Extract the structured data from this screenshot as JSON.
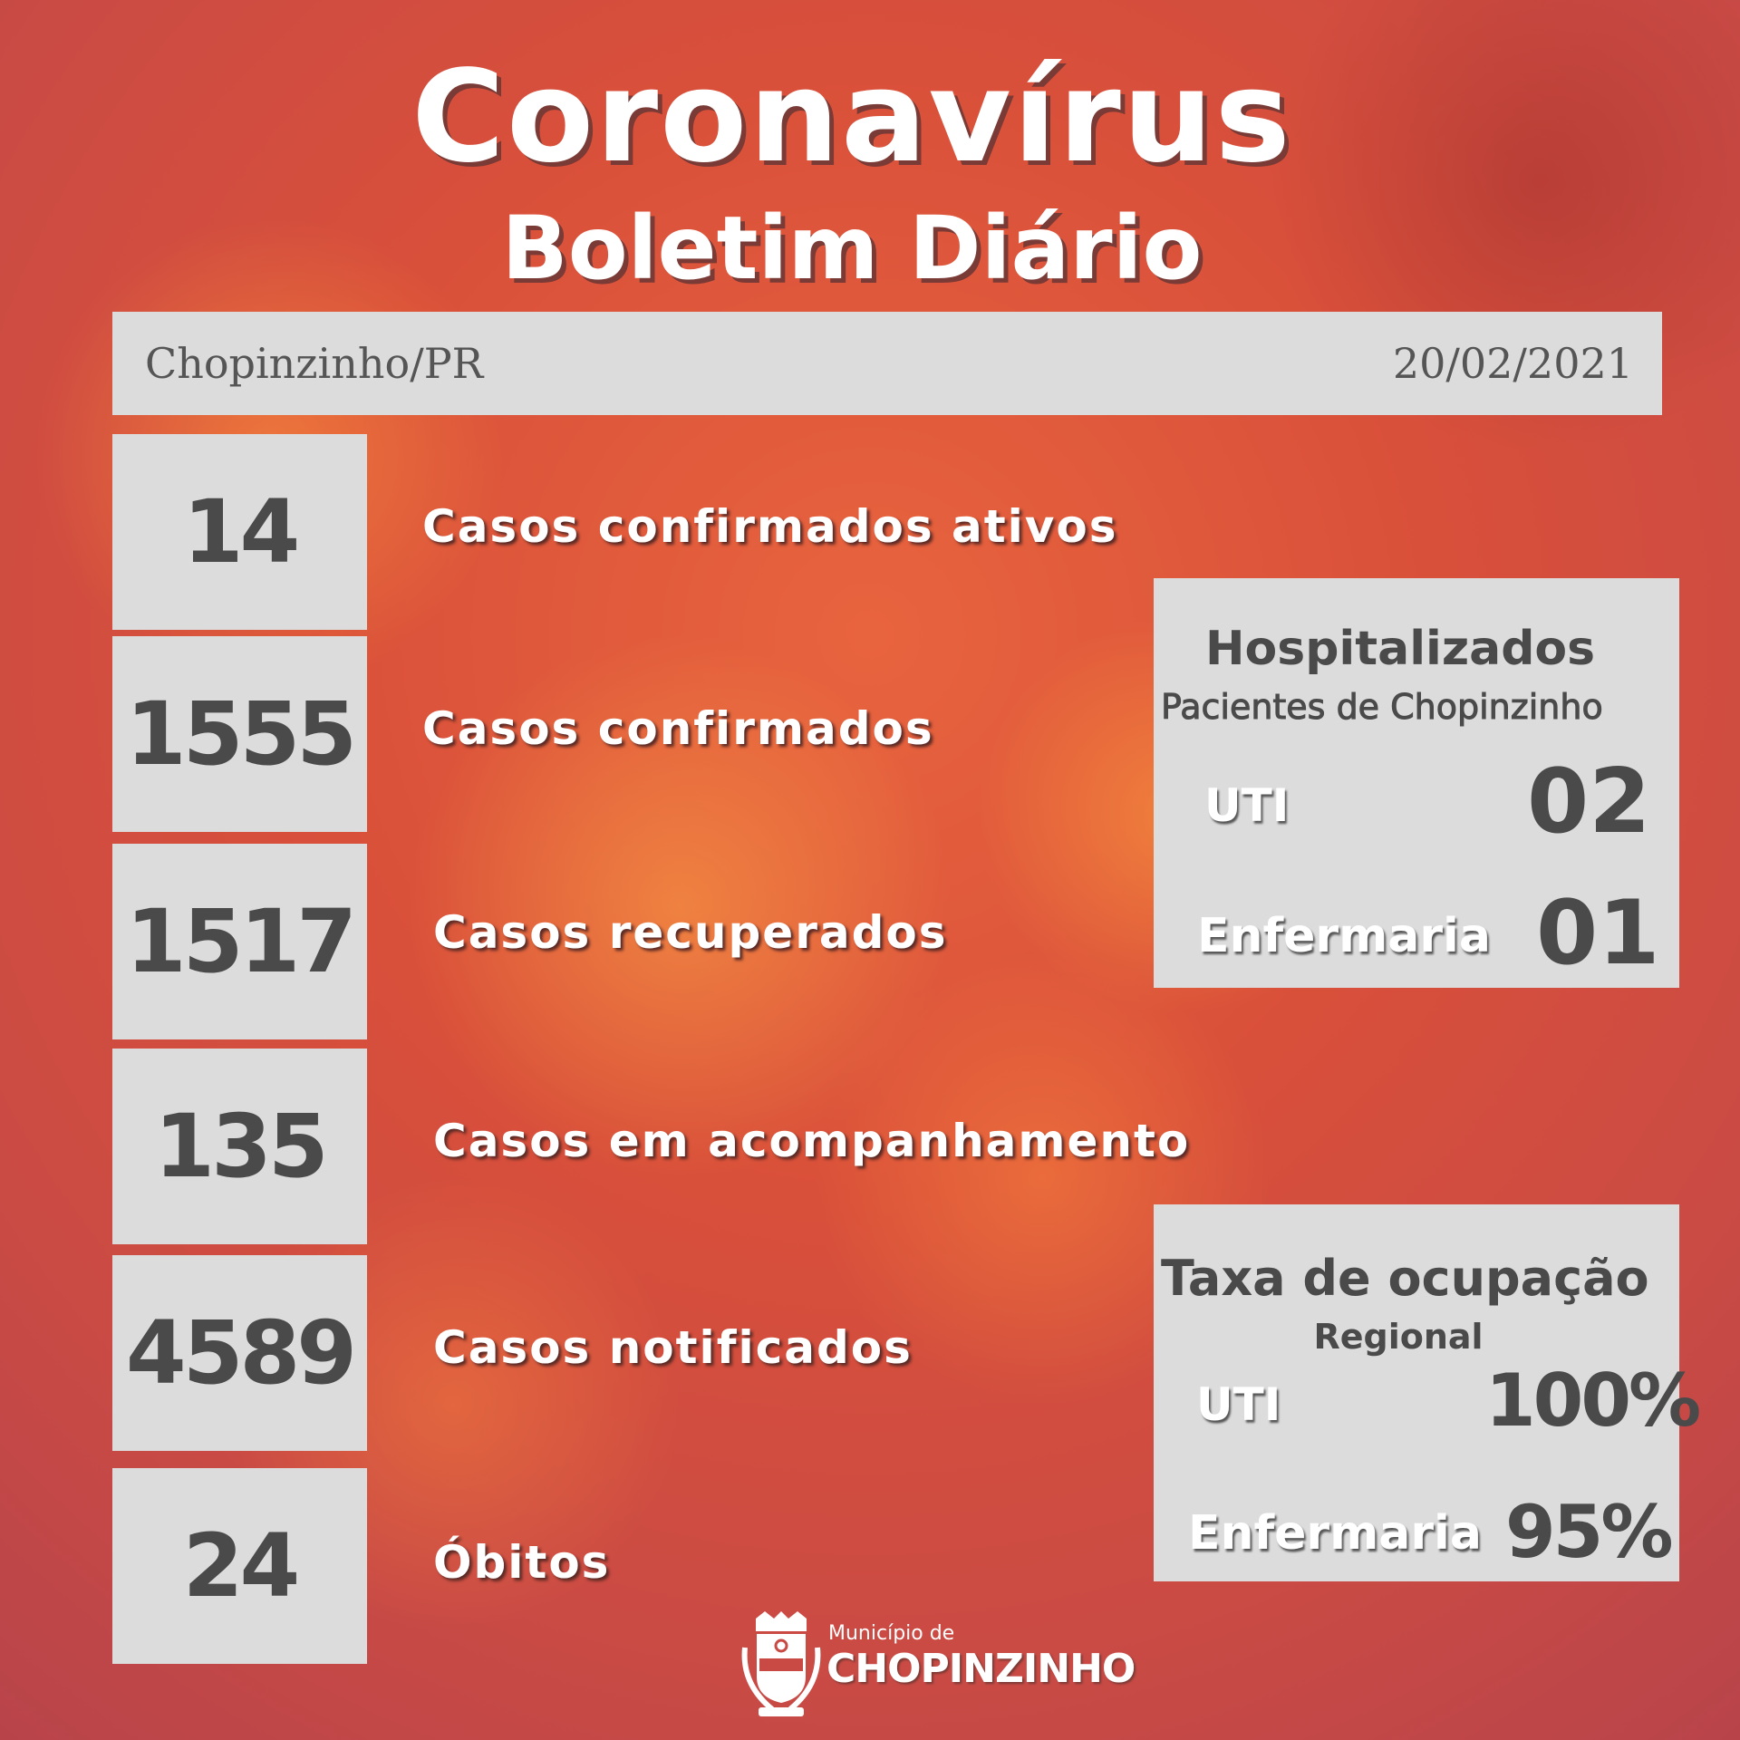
{
  "header": {
    "title": "Coronavírus",
    "subtitle": "Boletim Diário"
  },
  "info_bar": {
    "location": "Chopinzinho/PR",
    "date": "20/02/2021"
  },
  "stats": [
    {
      "value": "14",
      "label": "Casos confirmados ativos"
    },
    {
      "value": "1555",
      "label": "Casos confirmados"
    },
    {
      "value": "1517",
      "label": "Casos recuperados"
    },
    {
      "value": "135",
      "label": "Casos em acompanhamento"
    },
    {
      "value": "4589",
      "label": "Casos notificados"
    },
    {
      "value": "24",
      "label": "Óbitos"
    }
  ],
  "hospitalized": {
    "title": "Hospitalizados",
    "subtitle": "Pacientes de Chopinzinho",
    "uti_label": "UTI",
    "uti_value": "02",
    "ward_label": "Enfermaria",
    "ward_value": "01"
  },
  "occupancy": {
    "title": "Taxa de ocupação",
    "subtitle": "Regional",
    "uti_label": "UTI",
    "uti_value": "100%",
    "ward_label": "Enfermaria",
    "ward_value": "95%"
  },
  "footer": {
    "logo_small": "Município de",
    "logo_name": "CHOPINZINHO"
  },
  "colors": {
    "panel": "#dcdcdc",
    "number_text": "#4a4a4a",
    "background": "#d9503a"
  }
}
